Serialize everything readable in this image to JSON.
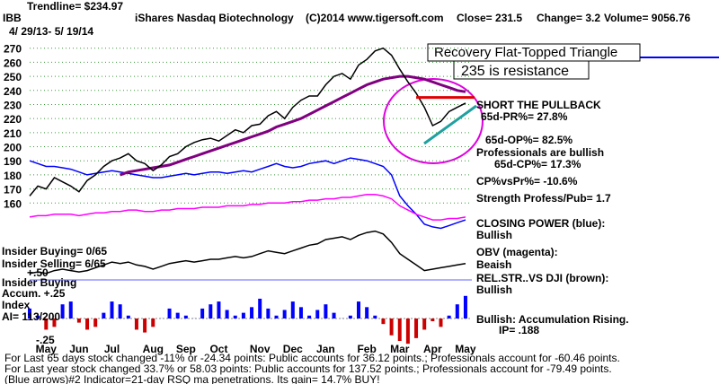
{
  "chart_data": {
    "type": "line",
    "trendline_label": "Trendline= $234.97",
    "ticker": "IBB",
    "title": "iShares Nasdaq Biotechnology",
    "copyright": "(C)2014 www.tigersoft.com",
    "close": "Close= 231.5",
    "change": "Change= 3.2",
    "volume": "Volume= 9056.76",
    "date_range": "4/ 29/13- 5/ 19/14",
    "pattern_label": "Recovery Flat-Topped Triangle",
    "resistance_label": "235 is resistance",
    "resistance": 235,
    "annotations": [
      "SHORT THE PULLBACK",
      "65d-PR%= 27.8%",
      "65d-OP%= 82.5%",
      "Professionals are bullish",
      "65d-CP%= 17.3%",
      "CP%vsPr%= -10.6%",
      "Strength Profess/Pub= 1.7",
      "CLOSING POWER (blue):",
      "Bullish",
      "OBV (magenta):",
      "Beaish",
      "REL.STR..VS DJI (brown):",
      "Bullish",
      "Bullish: Accumulation Rising.",
      "IP= .188",
      "Insider Buying= 0/65",
      "Insider Selling= 6/65",
      "+.50",
      "Insider Buying",
      "Accum. +.25",
      "Index",
      "AI= 113/200",
      "-.25"
    ],
    "footer": [
      "For Last 65 days stock changed -11% or -24.34 points:  Public accounts for  36.12 points.;  Professionals account for -60.46 points.",
      "For Last year stock changed  33.7% or 58.03 points:  Public accounts for  137.52 points.;  Professionals account for -79.49 points.",
      "(Blue arrows)#2 Indicator=21-day RSQ ma penetrations. Its gain= 14.7% BUY!"
    ],
    "categories": [
      null,
      null,
      "May",
      null,
      null,
      null,
      "Jun",
      null,
      null,
      null,
      "Jul",
      null,
      null,
      null,
      null,
      "Aug",
      null,
      null,
      null,
      "Sep",
      null,
      null,
      null,
      "Oct",
      null,
      null,
      null,
      null,
      "Nov",
      null,
      null,
      null,
      "Dec",
      null,
      null,
      null,
      "Jan",
      null,
      null,
      null,
      null,
      "Feb",
      null,
      null,
      null,
      "Mar",
      null,
      null,
      null,
      "Apr",
      null,
      null,
      null,
      "May"
    ],
    "ylim": [
      62,
      280
    ],
    "yticks": [
      160,
      170,
      180,
      190,
      200,
      210,
      220,
      230,
      240,
      250,
      260,
      270
    ],
    "grid": true,
    "series": [
      {
        "name": "CLOSING POWER (blue)",
        "color": "#0000ff",
        "values": [
          190,
          188,
          186,
          186,
          185,
          184,
          182,
          180,
          181,
          182,
          183,
          182,
          181,
          180,
          179,
          178,
          178,
          179,
          180,
          181,
          180,
          181,
          182,
          182,
          181,
          182,
          183,
          182,
          184,
          186,
          188,
          186,
          185,
          186,
          188,
          189,
          190,
          188,
          190,
          192,
          191,
          190,
          188,
          186,
          180,
          165,
          158,
          152,
          145,
          143,
          142,
          144,
          146,
          148
        ]
      },
      {
        "name": "OBV (magenta)",
        "color": "#ff00ff",
        "values": [
          150,
          151,
          151,
          152,
          152,
          152,
          151,
          152,
          153,
          153,
          154,
          154,
          155,
          155,
          154,
          154,
          155,
          155,
          156,
          156,
          156,
          157,
          157,
          157,
          158,
          158,
          158,
          159,
          159,
          160,
          160,
          160,
          161,
          161,
          162,
          162,
          163,
          163,
          164,
          164,
          165,
          166,
          166,
          165,
          163,
          158,
          155,
          152,
          150,
          148,
          148,
          149,
          149,
          150
        ]
      },
      {
        "name": "REL.STR..VS DJI",
        "color": "#000000",
        "values": [
          110,
          111,
          110,
          112,
          113,
          112,
          111,
          112,
          114,
          116,
          118,
          117,
          118,
          116,
          115,
          113,
          115,
          117,
          118,
          119,
          118,
          119,
          120,
          120,
          121,
          122,
          121,
          122,
          124,
          126,
          125,
          124,
          126,
          128,
          130,
          131,
          134,
          135,
          136,
          134,
          137,
          139,
          140,
          138,
          132,
          124,
          120,
          116,
          112,
          113,
          114,
          115,
          116,
          117
        ]
      },
      {
        "name": "Accum. Index",
        "style": "bars",
        "colors": [
          "#0000ff",
          "#cc0000"
        ],
        "values": [
          85,
          80,
          70,
          72,
          88,
          90,
          75,
          70,
          72,
          82,
          90,
          88,
          80,
          70,
          68,
          72,
          78,
          85,
          82,
          80,
          78,
          85,
          88,
          90,
          84,
          80,
          82,
          86,
          92,
          85,
          80,
          84,
          90,
          86,
          80,
          84,
          88,
          82,
          78,
          80,
          90,
          86,
          80,
          74,
          66,
          62,
          60,
          64,
          70,
          76,
          72,
          80,
          88,
          94
        ]
      },
      {
        "name": "65-day MA",
        "color": "#800080",
        "width": 3,
        "values": [
          null,
          null,
          null,
          null,
          null,
          null,
          null,
          null,
          null,
          null,
          null,
          180,
          182,
          183,
          184,
          185,
          186,
          187,
          189,
          191,
          193,
          195,
          197,
          199,
          201,
          203,
          205,
          207,
          209,
          211,
          214,
          216,
          218,
          220,
          223,
          226,
          229,
          232,
          235,
          238,
          241,
          244,
          246,
          248,
          249,
          250,
          250,
          249,
          248,
          246,
          244,
          242,
          240,
          239
        ]
      },
      {
        "name": "IBB",
        "color": "#000000",
        "values": [
          165,
          172,
          170,
          178,
          175,
          172,
          168,
          176,
          180,
          186,
          190,
          192,
          195,
          190,
          188,
          183,
          187,
          193,
          195,
          200,
          203,
          205,
          206,
          204,
          208,
          212,
          210,
          215,
          216,
          222,
          225,
          220,
          228,
          233,
          236,
          236,
          244,
          250,
          252,
          248,
          258,
          262,
          268,
          270,
          265,
          255,
          246,
          238,
          228,
          215,
          218,
          225,
          228,
          231
        ]
      }
    ]
  }
}
